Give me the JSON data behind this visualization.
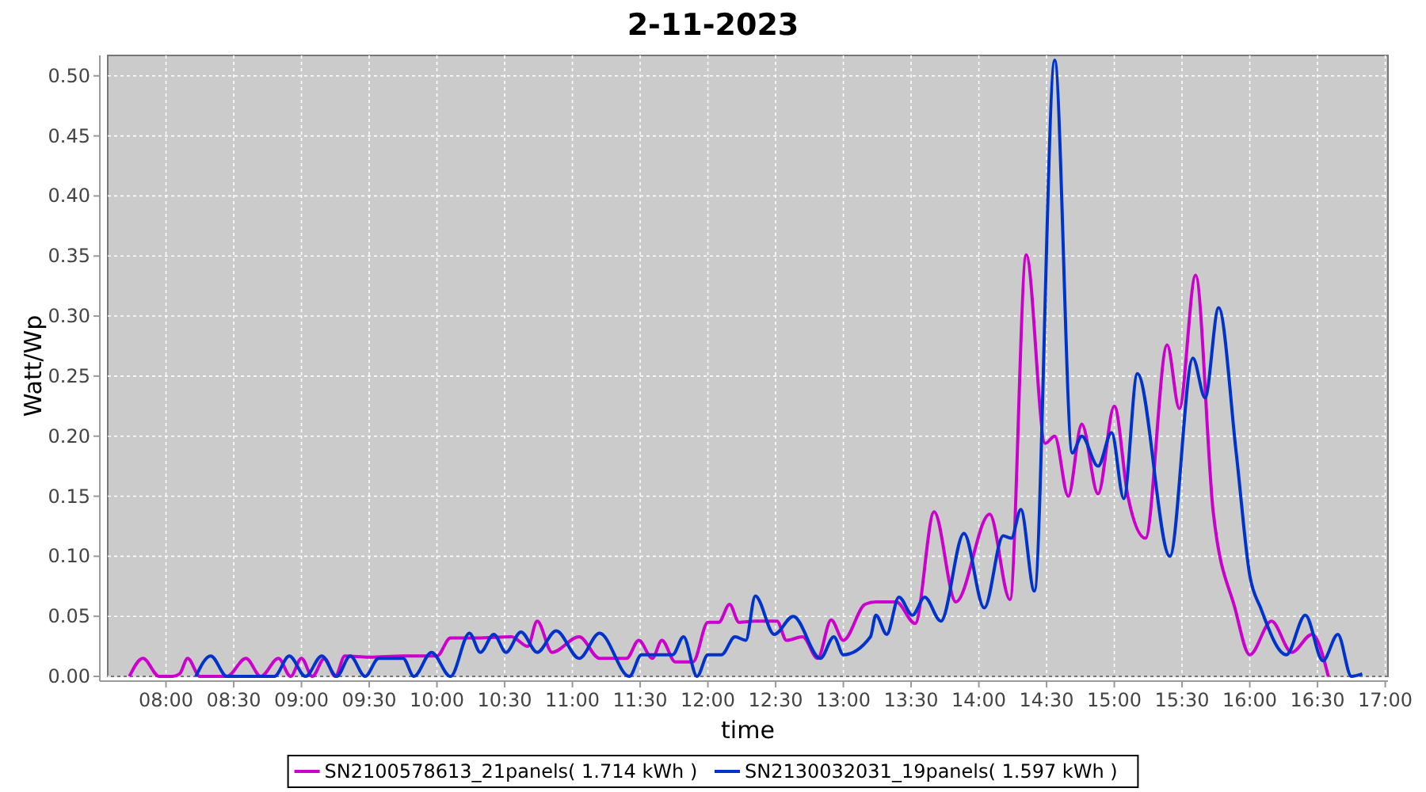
{
  "chart_data": {
    "type": "line",
    "title": "2-11-2023",
    "xlabel": "time",
    "ylabel": "Watt/Wp",
    "xlim": [
      7.57,
      17.02
    ],
    "ylim": [
      0,
      0.517
    ],
    "xticks": [
      {
        "value": 8,
        "label": "08:00"
      },
      {
        "value": 8.5,
        "label": "08:30"
      },
      {
        "value": 9,
        "label": "09:00"
      },
      {
        "value": 9.5,
        "label": "09:30"
      },
      {
        "value": 10,
        "label": "10:00"
      },
      {
        "value": 10.5,
        "label": "10:30"
      },
      {
        "value": 11,
        "label": "11:00"
      },
      {
        "value": 11.5,
        "label": "11:30"
      },
      {
        "value": 12,
        "label": "12:00"
      },
      {
        "value": 12.5,
        "label": "12:30"
      },
      {
        "value": 13,
        "label": "13:00"
      },
      {
        "value": 13.5,
        "label": "13:30"
      },
      {
        "value": 14,
        "label": "14:00"
      },
      {
        "value": 14.5,
        "label": "14:30"
      },
      {
        "value": 15,
        "label": "15:00"
      },
      {
        "value": 15.5,
        "label": "15:30"
      },
      {
        "value": 16,
        "label": "16:00"
      },
      {
        "value": 16.5,
        "label": "16:30"
      },
      {
        "value": 17,
        "label": "17:00"
      }
    ],
    "yticks": [
      {
        "value": 0,
        "label": "0.00"
      },
      {
        "value": 0.05,
        "label": "0.05"
      },
      {
        "value": 0.1,
        "label": "0.10"
      },
      {
        "value": 0.15,
        "label": "0.15"
      },
      {
        "value": 0.2,
        "label": "0.20"
      },
      {
        "value": 0.25,
        "label": "0.25"
      },
      {
        "value": 0.3,
        "label": "0.30"
      },
      {
        "value": 0.35,
        "label": "0.35"
      },
      {
        "value": 0.4,
        "label": "0.40"
      },
      {
        "value": 0.45,
        "label": "0.45"
      },
      {
        "value": 0.5,
        "label": "0.50"
      }
    ],
    "grid": true,
    "legend": "bottom",
    "line_style": "solid",
    "series": [
      {
        "name": "SN2100578613_21panels( 1.714 kWh )",
        "color": "#cc00cc",
        "x": [
          7.73,
          7.83,
          7.95,
          8.05,
          8.1,
          8.16,
          8.25,
          8.45,
          8.59,
          8.7,
          8.83,
          8.92,
          9.0,
          9.08,
          9.17,
          9.25,
          9.32,
          9.5,
          9.75,
          10.0,
          10.1,
          10.3,
          10.55,
          10.67,
          10.74,
          10.85,
          11.05,
          11.2,
          11.4,
          11.49,
          11.59,
          11.66,
          11.76,
          11.89,
          12.0,
          12.08,
          12.16,
          12.23,
          12.35,
          12.51,
          12.58,
          12.7,
          12.81,
          12.91,
          13.0,
          13.16,
          13.24,
          13.39,
          13.53,
          13.67,
          13.83,
          14.08,
          14.23,
          14.35,
          14.49,
          14.56,
          14.66,
          14.76,
          14.88,
          15.0,
          15.1,
          15.23,
          15.39,
          15.48,
          15.6,
          15.73,
          15.89,
          16.0,
          16.16,
          16.31,
          16.46,
          16.58
        ],
        "values": [
          0,
          0.015,
          0,
          0,
          0.002,
          0.015,
          0,
          0,
          0.015,
          0,
          0.015,
          0,
          0.015,
          0,
          0.015,
          0,
          0.017,
          0.016,
          0.017,
          0.017,
          0.032,
          0.032,
          0.033,
          0.025,
          0.046,
          0.02,
          0.033,
          0.015,
          0.015,
          0.03,
          0.015,
          0.03,
          0.012,
          0.012,
          0.045,
          0.045,
          0.06,
          0.045,
          0.046,
          0.046,
          0.03,
          0.033,
          0.015,
          0.047,
          0.03,
          0.06,
          0.062,
          0.062,
          0.044,
          0.137,
          0.062,
          0.135,
          0.064,
          0.351,
          0.194,
          0.2,
          0.15,
          0.21,
          0.152,
          0.225,
          0.15,
          0.115,
          0.276,
          0.223,
          0.334,
          0.137,
          0.057,
          0.018,
          0.046,
          0.02,
          0.035,
          0
        ]
      },
      {
        "name": "SN2130032031_19panels( 1.597 kWh )",
        "color": "#0033cc",
        "x": [
          8.22,
          8.33,
          8.45,
          8.8,
          8.91,
          9.03,
          9.15,
          9.26,
          9.36,
          9.47,
          9.57,
          9.75,
          9.83,
          9.96,
          10.1,
          10.24,
          10.32,
          10.42,
          10.51,
          10.62,
          10.74,
          10.88,
          11.05,
          11.2,
          11.42,
          11.51,
          11.74,
          11.82,
          11.92,
          12.0,
          12.1,
          12.2,
          12.28,
          12.35,
          12.49,
          12.63,
          12.83,
          12.93,
          13.0,
          13.2,
          13.24,
          13.32,
          13.41,
          13.51,
          13.6,
          13.72,
          13.89,
          14.04,
          14.18,
          14.24,
          14.31,
          14.41,
          14.56,
          14.69,
          14.76,
          14.88,
          14.98,
          15.07,
          15.17,
          15.41,
          15.58,
          15.67,
          15.77,
          15.9,
          16.0,
          16.08,
          16.27,
          16.41,
          16.54,
          16.65,
          16.75,
          16.83
        ],
        "values": [
          0,
          0.017,
          0,
          0,
          0.017,
          0,
          0.017,
          0,
          0.017,
          0,
          0.015,
          0.015,
          0,
          0.02,
          0,
          0.036,
          0.02,
          0.035,
          0.02,
          0.037,
          0.02,
          0.038,
          0.015,
          0.036,
          0,
          0.018,
          0.018,
          0.033,
          0,
          0.018,
          0.018,
          0.033,
          0.03,
          0.067,
          0.035,
          0.05,
          0.015,
          0.033,
          0.018,
          0.033,
          0.051,
          0.035,
          0.066,
          0.051,
          0.066,
          0.046,
          0.119,
          0.057,
          0.117,
          0.115,
          0.139,
          0.071,
          0.513,
          0.186,
          0.2,
          0.175,
          0.203,
          0.148,
          0.252,
          0.1,
          0.265,
          0.232,
          0.307,
          0.186,
          0.084,
          0.057,
          0.018,
          0.051,
          0.013,
          0.035,
          0,
          0.002
        ]
      }
    ]
  }
}
